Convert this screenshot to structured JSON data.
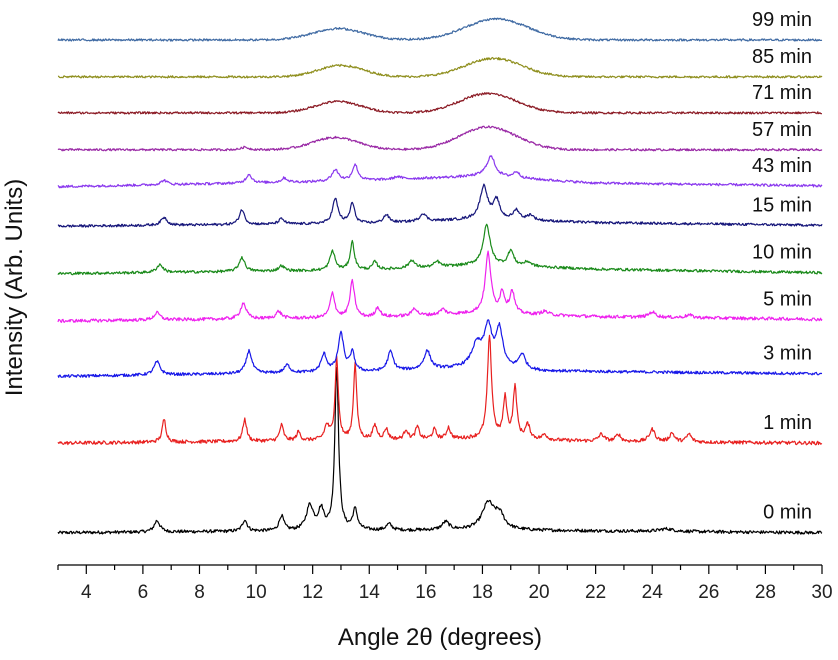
{
  "chart_data": {
    "type": "line",
    "title": "",
    "xlabel": "Angle 2θ (degrees)",
    "ylabel": "Intensity (Arb. Units)",
    "xlim": [
      3,
      30
    ],
    "x_ticks": [
      4,
      6,
      8,
      10,
      12,
      14,
      16,
      18,
      20,
      22,
      24,
      26,
      28,
      30
    ],
    "y_ticks": [],
    "grid": false,
    "legend": "labels at right end of each trace",
    "stacking": "vertically offset traces, 0 min at bottom",
    "series": [
      {
        "name": "0 min",
        "color": "#000000",
        "baseline": 1.4,
        "noise": 0.18,
        "background": [
          [
            3,
            0
          ],
          [
            12,
            0.2
          ],
          [
            18,
            0.3
          ],
          [
            30,
            0.0
          ]
        ],
        "peaks": [
          [
            6.5,
            1.3,
            0.12
          ],
          [
            9.6,
            1.3,
            0.1
          ],
          [
            10.9,
            1.7,
            0.1
          ],
          [
            11.9,
            2.8,
            0.15
          ],
          [
            12.3,
            2.2,
            0.12
          ],
          [
            12.85,
            18.5,
            0.08
          ],
          [
            13.5,
            2.3,
            0.1
          ],
          [
            14.7,
            0.7,
            0.12
          ],
          [
            16.7,
            0.9,
            0.15
          ],
          [
            18.2,
            3.0,
            0.25
          ],
          [
            18.6,
            1.6,
            0.2
          ],
          [
            24.5,
            0.3,
            0.3
          ]
        ],
        "halos": []
      },
      {
        "name": "1 min",
        "color": "#e8201f",
        "baseline": 11.6,
        "noise": 0.2,
        "background": [
          [
            3,
            0
          ],
          [
            13,
            0.3
          ],
          [
            18,
            0.5
          ],
          [
            22,
            0.2
          ],
          [
            30,
            0
          ]
        ],
        "peaks": [
          [
            6.75,
            2.6,
            0.08
          ],
          [
            9.6,
            2.5,
            0.08
          ],
          [
            10.9,
            1.8,
            0.08
          ],
          [
            11.5,
            1.0,
            0.08
          ],
          [
            12.5,
            1.6,
            0.1
          ],
          [
            12.85,
            9.3,
            0.07
          ],
          [
            13.5,
            8.6,
            0.07
          ],
          [
            14.2,
            1.6,
            0.09
          ],
          [
            14.6,
            1.2,
            0.08
          ],
          [
            15.3,
            1.1,
            0.08
          ],
          [
            15.7,
            1.4,
            0.08
          ],
          [
            16.3,
            1.1,
            0.08
          ],
          [
            16.8,
            1.3,
            0.08
          ],
          [
            18.25,
            11.5,
            0.09
          ],
          [
            18.8,
            4.5,
            0.08
          ],
          [
            19.15,
            5.8,
            0.08
          ],
          [
            19.6,
            1.6,
            0.1
          ],
          [
            20.2,
            0.6,
            0.1
          ],
          [
            22.2,
            0.8,
            0.12
          ],
          [
            22.8,
            0.8,
            0.1
          ],
          [
            24.0,
            1.4,
            0.12
          ],
          [
            24.7,
            1.0,
            0.1
          ],
          [
            25.3,
            0.9,
            0.1
          ]
        ],
        "halos": []
      },
      {
        "name": "3 min",
        "color": "#1818e8",
        "baseline": 19.2,
        "noise": 0.16,
        "background": [
          [
            3,
            0
          ],
          [
            14,
            0.5
          ],
          [
            18,
            1.0
          ],
          [
            20,
            0.6
          ],
          [
            30,
            0.3
          ]
        ],
        "peaks": [
          [
            6.5,
            1.5,
            0.13
          ],
          [
            9.75,
            2.6,
            0.12
          ],
          [
            11.1,
            0.9,
            0.12
          ],
          [
            12.4,
            2.0,
            0.12
          ],
          [
            13.0,
            4.3,
            0.12
          ],
          [
            13.4,
            2.1,
            0.1
          ],
          [
            14.75,
            2.2,
            0.12
          ],
          [
            16.05,
            2.1,
            0.14
          ],
          [
            17.8,
            2.5,
            0.22
          ],
          [
            18.2,
            4.4,
            0.16
          ],
          [
            18.6,
            4.3,
            0.14
          ],
          [
            19.4,
            1.7,
            0.14
          ]
        ],
        "halos": []
      },
      {
        "name": "5 min",
        "color": "#ee22ee",
        "baseline": 25.5,
        "noise": 0.18,
        "background": [
          [
            3,
            0
          ],
          [
            14,
            0.4
          ],
          [
            18,
            0.9
          ],
          [
            22,
            0.5
          ],
          [
            30,
            0.2
          ]
        ],
        "peaks": [
          [
            6.5,
            0.8,
            0.13
          ],
          [
            9.55,
            1.8,
            0.12
          ],
          [
            10.8,
            0.8,
            0.12
          ],
          [
            12.7,
            2.8,
            0.1
          ],
          [
            13.4,
            4.1,
            0.1
          ],
          [
            14.3,
            1.1,
            0.1
          ],
          [
            15.6,
            0.9,
            0.1
          ],
          [
            16.6,
            0.6,
            0.12
          ],
          [
            18.2,
            6.8,
            0.12
          ],
          [
            18.7,
            2.3,
            0.1
          ],
          [
            19.05,
            2.5,
            0.1
          ],
          [
            20.2,
            0.4,
            0.15
          ],
          [
            24.0,
            0.6,
            0.15
          ],
          [
            25.3,
            0.3,
            0.15
          ]
        ],
        "halos": []
      },
      {
        "name": "10 min",
        "color": "#1a8a1a",
        "baseline": 30.9,
        "noise": 0.15,
        "background": [
          [
            3,
            0
          ],
          [
            14,
            0.4
          ],
          [
            18,
            1.0
          ],
          [
            22,
            0.5
          ],
          [
            30,
            0.1
          ]
        ],
        "peaks": [
          [
            6.6,
            0.9,
            0.13
          ],
          [
            9.5,
            1.6,
            0.12
          ],
          [
            10.9,
            0.6,
            0.12
          ],
          [
            12.7,
            2.2,
            0.11
          ],
          [
            13.4,
            3.2,
            0.09
          ],
          [
            14.2,
            0.9,
            0.1
          ],
          [
            15.5,
            0.9,
            0.12
          ],
          [
            16.4,
            0.6,
            0.12
          ],
          [
            18.15,
            4.5,
            0.15
          ],
          [
            19.0,
            1.7,
            0.12
          ],
          [
            19.6,
            0.5,
            0.15
          ]
        ],
        "halos": []
      },
      {
        "name": "15 min",
        "color": "#16167a",
        "baseline": 36.3,
        "noise": 0.14,
        "background": [
          [
            3,
            0
          ],
          [
            14,
            0.3
          ],
          [
            18,
            0.8
          ],
          [
            22,
            0.4
          ],
          [
            30,
            0.1
          ]
        ],
        "peaks": [
          [
            6.75,
            0.9,
            0.13
          ],
          [
            9.5,
            1.7,
            0.11
          ],
          [
            10.9,
            0.6,
            0.12
          ],
          [
            12.8,
            2.8,
            0.12
          ],
          [
            13.4,
            2.3,
            0.1
          ],
          [
            14.6,
            0.9,
            0.12
          ],
          [
            15.9,
            0.9,
            0.13
          ],
          [
            18.05,
            3.7,
            0.16
          ],
          [
            18.5,
            2.1,
            0.13
          ],
          [
            19.2,
            1.1,
            0.13
          ],
          [
            19.7,
            0.6,
            0.14
          ]
        ],
        "halos": []
      },
      {
        "name": "43 min",
        "color": "#8a38ee",
        "baseline": 40.8,
        "noise": 0.14,
        "background": [
          [
            3,
            0
          ],
          [
            13,
            0.6
          ],
          [
            18,
            1.2
          ],
          [
            22,
            0.4
          ],
          [
            30,
            0.1
          ]
        ],
        "peaks": [
          [
            6.75,
            0.5,
            0.13
          ],
          [
            9.75,
            1.0,
            0.12
          ],
          [
            11.0,
            0.5,
            0.12
          ],
          [
            12.8,
            1.3,
            0.15
          ],
          [
            13.5,
            1.8,
            0.12
          ],
          [
            15.0,
            0.3,
            0.15
          ],
          [
            18.3,
            2.3,
            0.18
          ],
          [
            19.2,
            0.7,
            0.13
          ]
        ],
        "halos": []
      },
      {
        "name": "57 min",
        "color": "#9a2aa6",
        "baseline": 45.0,
        "noise": 0.12,
        "background": [
          [
            3,
            0
          ],
          [
            30,
            0
          ]
        ],
        "peaks": [
          [
            9.6,
            0.3,
            0.15
          ]
        ],
        "halos": [
          [
            12.8,
            1.4,
            0.8
          ],
          [
            18.2,
            2.6,
            1.0
          ]
        ]
      },
      {
        "name": "71 min",
        "color": "#8b1a24",
        "baseline": 49.2,
        "noise": 0.12,
        "background": [
          [
            3,
            0
          ],
          [
            30,
            0
          ]
        ],
        "peaks": [],
        "halos": [
          [
            12.9,
            1.3,
            0.8
          ],
          [
            18.2,
            2.2,
            1.0
          ]
        ]
      },
      {
        "name": "85 min",
        "color": "#8f8f1e",
        "baseline": 53.3,
        "noise": 0.12,
        "background": [
          [
            3,
            0
          ],
          [
            30,
            0
          ]
        ],
        "peaks": [],
        "halos": [
          [
            13.0,
            1.3,
            0.8
          ],
          [
            18.4,
            2.1,
            1.0
          ]
        ]
      },
      {
        "name": "99 min",
        "color": "#3f6aa3",
        "baseline": 57.5,
        "noise": 0.12,
        "background": [
          [
            3,
            0
          ],
          [
            30,
            0
          ]
        ],
        "peaks": [],
        "halos": [
          [
            12.9,
            1.3,
            0.9
          ],
          [
            18.5,
            2.4,
            1.1
          ]
        ]
      }
    ]
  }
}
